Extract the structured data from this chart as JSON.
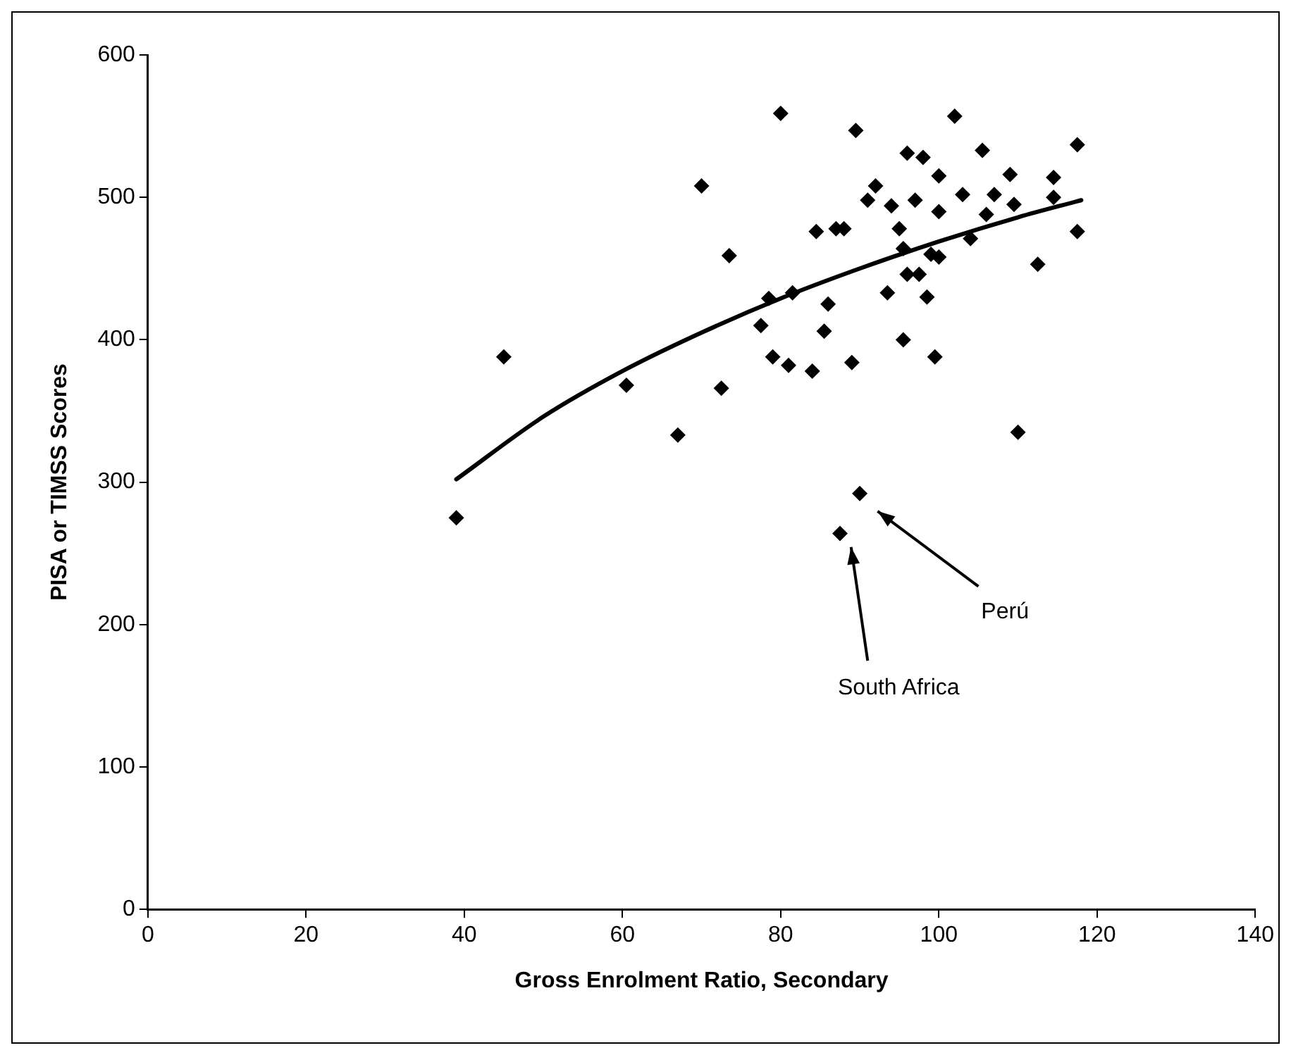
{
  "chart_data": {
    "type": "scatter",
    "xlabel": "Gross Enrolment Ratio, Secondary",
    "ylabel": "PISA or TIMSS Scores",
    "xlim": [
      0,
      140
    ],
    "xticks": [
      0,
      20,
      40,
      60,
      80,
      100,
      120,
      140
    ],
    "ylim": [
      0,
      600
    ],
    "yticks": [
      0,
      100,
      200,
      300,
      400,
      500,
      600
    ],
    "grid": false,
    "legend": false,
    "series": [
      {
        "type": "scatter",
        "color": "#000000",
        "marker": "diamond",
        "x": [
          39,
          45,
          60.5,
          67,
          70,
          72.5,
          73.5,
          77.5,
          78.5,
          79,
          80,
          81,
          81.5,
          84,
          84.5,
          85.5,
          86,
          87,
          88,
          87.5,
          89,
          89.5,
          90,
          91,
          92,
          94,
          93.5,
          95,
          95.5,
          95.5,
          96,
          96,
          97,
          97.5,
          98,
          98.5,
          99,
          99.5,
          100,
          100,
          100,
          102,
          103,
          104,
          105.5,
          106,
          107,
          109,
          109.5,
          110,
          112.5,
          114.5,
          114.5,
          117.5,
          117.5
        ],
        "values": [
          275,
          388,
          368,
          333,
          508,
          366,
          459,
          410,
          429,
          388,
          559,
          382,
          433,
          378,
          476,
          406,
          425,
          478,
          478,
          264,
          384,
          547,
          292,
          498,
          508,
          494,
          433,
          478,
          464,
          400,
          531,
          446,
          498,
          446,
          528,
          430,
          460,
          388,
          515,
          490,
          458,
          557,
          502,
          471,
          533,
          488,
          502,
          516,
          495,
          335,
          453,
          514,
          500,
          537,
          476
        ]
      },
      {
        "type": "line",
        "color": "#000000",
        "marker": "none",
        "line_style": "solid",
        "x": [
          39,
          50,
          60,
          70,
          80,
          90,
          100,
          110,
          118
        ],
        "values": [
          302,
          346,
          378,
          405,
          429,
          450,
          469,
          486,
          498
        ]
      }
    ],
    "annotations": [
      "South Africa",
      "Perú"
    ]
  }
}
